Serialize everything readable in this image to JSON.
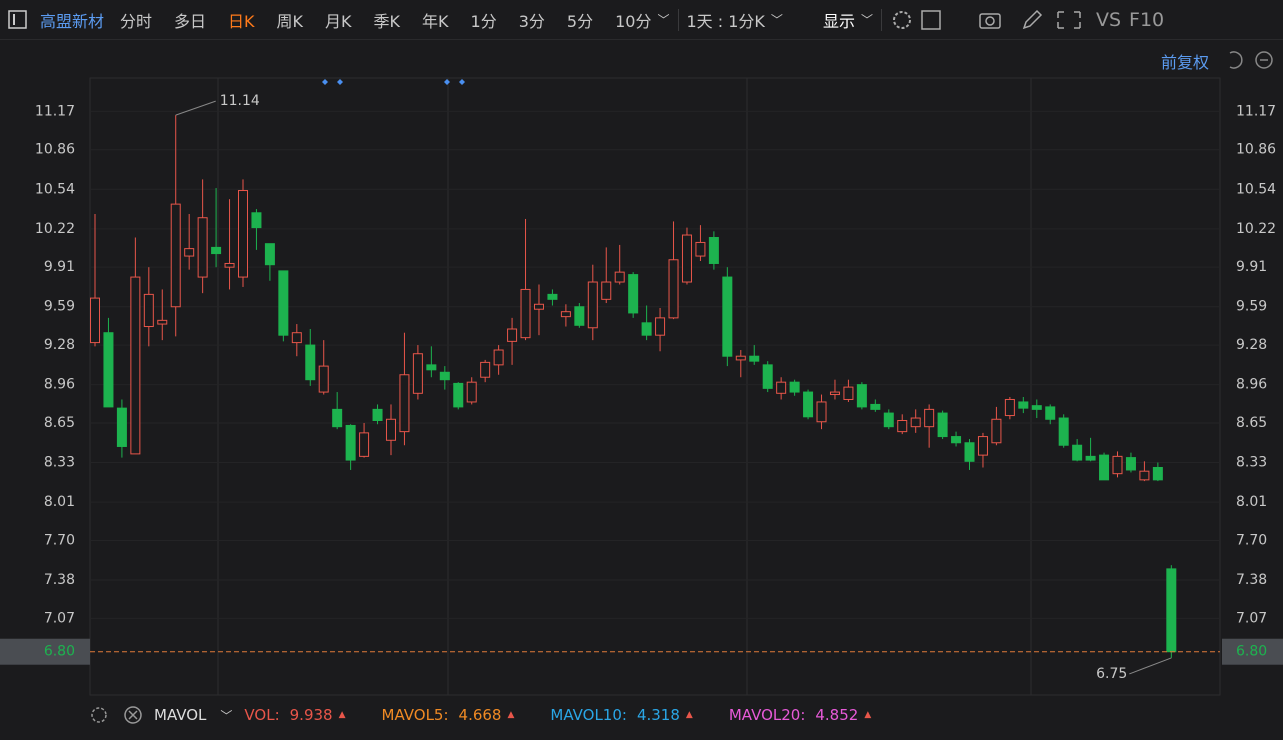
{
  "toolbar": {
    "stock_name": "高盟新材",
    "tabs": [
      {
        "label": "分时",
        "color": "#c8c8c8"
      },
      {
        "label": "多日",
        "color": "#c8c8c8"
      },
      {
        "label": "日K",
        "color": "#ff7a1a"
      },
      {
        "label": "周K",
        "color": "#c8c8c8"
      },
      {
        "label": "月K",
        "color": "#c8c8c8"
      },
      {
        "label": "季K",
        "color": "#c8c8c8"
      },
      {
        "label": "年K",
        "color": "#c8c8c8"
      },
      {
        "label": "1分",
        "color": "#c8c8c8"
      },
      {
        "label": "3分",
        "color": "#c8c8c8"
      },
      {
        "label": "5分",
        "color": "#c8c8c8"
      },
      {
        "label": "10分",
        "color": "#c8c8c8"
      }
    ],
    "period": "1天 : 1分K",
    "display": "显示",
    "vs": "VS",
    "f10": "F10"
  },
  "adjust": "前复权",
  "chart_data": {
    "type": "candlestick",
    "up_color": "#e8564a",
    "down_color": "#1db34f",
    "open": [
      9.3,
      9.38,
      8.77,
      8.4,
      9.43,
      9.45,
      9.59,
      10.0,
      9.83,
      10.07,
      9.91,
      9.83,
      10.35,
      10.1,
      9.88,
      9.3,
      9.28,
      8.9,
      8.76,
      8.63,
      8.38,
      8.76,
      8.51,
      8.58,
      8.89,
      9.12,
      9.06,
      8.97,
      8.82,
      9.02,
      9.12,
      9.31,
      9.34,
      9.57,
      9.69,
      9.51,
      9.59,
      9.42,
      9.65,
      9.79,
      9.85,
      9.46,
      9.36,
      9.5,
      9.79,
      10.0,
      10.15,
      9.83,
      9.16,
      9.19,
      9.12,
      8.89,
      8.98,
      8.9,
      8.66,
      8.88,
      8.84,
      8.96,
      8.8,
      8.73,
      8.58,
      8.62,
      8.62,
      8.73,
      8.54,
      8.49,
      8.39,
      8.49,
      8.71,
      8.82,
      8.79,
      8.78,
      8.69,
      8.47,
      8.38,
      8.39,
      8.24,
      8.37,
      8.19,
      8.29,
      7.47
    ],
    "high": [
      10.34,
      9.5,
      8.84,
      10.15,
      9.91,
      9.73,
      11.14,
      10.34,
      10.62,
      10.55,
      10.46,
      10.62,
      10.38,
      10.1,
      9.88,
      9.45,
      9.41,
      9.32,
      8.9,
      8.64,
      8.65,
      8.8,
      8.8,
      9.38,
      9.28,
      9.27,
      9.11,
      8.98,
      9.02,
      9.16,
      9.28,
      9.5,
      10.3,
      9.77,
      9.73,
      9.61,
      9.62,
      9.93,
      10.07,
      10.09,
      9.87,
      9.6,
      9.58,
      10.28,
      10.23,
      10.25,
      10.2,
      9.91,
      9.24,
      9.28,
      9.15,
      9.02,
      9.0,
      8.92,
      8.88,
      9.0,
      9.0,
      8.98,
      8.84,
      8.76,
      8.72,
      8.76,
      8.8,
      8.75,
      8.58,
      8.52,
      8.57,
      8.78,
      8.86,
      8.86,
      8.84,
      8.8,
      8.72,
      8.52,
      8.53,
      8.41,
      8.42,
      8.41,
      8.34,
      8.33,
      7.5
    ],
    "low": [
      9.27,
      8.78,
      8.37,
      8.4,
      9.27,
      9.32,
      9.35,
      9.89,
      9.7,
      9.91,
      9.73,
      9.75,
      10.05,
      9.8,
      9.31,
      9.19,
      8.95,
      8.88,
      8.6,
      8.27,
      8.37,
      8.64,
      8.39,
      8.47,
      8.84,
      9.02,
      8.92,
      8.76,
      8.8,
      8.98,
      9.04,
      9.12,
      9.32,
      9.36,
      9.6,
      9.43,
      9.42,
      9.32,
      9.62,
      9.77,
      9.5,
      9.32,
      9.23,
      9.49,
      9.77,
      9.96,
      9.89,
      9.11,
      9.02,
      9.12,
      8.9,
      8.84,
      8.87,
      8.68,
      8.6,
      8.84,
      8.82,
      8.76,
      8.74,
      8.6,
      8.56,
      8.57,
      8.45,
      8.52,
      8.46,
      8.27,
      8.29,
      8.47,
      8.68,
      8.73,
      8.69,
      8.64,
      8.45,
      8.34,
      8.34,
      8.19,
      8.21,
      8.25,
      8.18,
      8.18,
      6.75
    ],
    "close": [
      9.66,
      8.78,
      8.46,
      9.83,
      9.69,
      9.48,
      10.42,
      10.06,
      10.31,
      10.02,
      9.94,
      10.53,
      10.23,
      9.93,
      9.36,
      9.38,
      9.0,
      9.11,
      8.62,
      8.35,
      8.57,
      8.67,
      8.68,
      9.04,
      9.21,
      9.08,
      9.0,
      8.78,
      8.98,
      9.14,
      9.24,
      9.41,
      9.73,
      9.61,
      9.65,
      9.55,
      9.44,
      9.79,
      9.79,
      9.87,
      9.54,
      9.36,
      9.5,
      9.97,
      10.17,
      10.11,
      9.94,
      9.19,
      9.19,
      9.15,
      8.93,
      8.98,
      8.9,
      8.7,
      8.82,
      8.9,
      8.94,
      8.78,
      8.76,
      8.62,
      8.67,
      8.69,
      8.76,
      8.54,
      8.49,
      8.34,
      8.54,
      8.68,
      8.84,
      8.77,
      8.76,
      8.68,
      8.47,
      8.35,
      8.35,
      8.19,
      8.38,
      8.27,
      8.26,
      8.19,
      6.8
    ],
    "ylim": [
      6.45,
      11.44
    ],
    "yticks": [
      11.17,
      10.86,
      10.54,
      10.22,
      9.91,
      9.59,
      9.28,
      8.96,
      8.65,
      8.33,
      8.01,
      {
        "value": 7.7,
        "label": "7.70"
      },
      7.38,
      7.07
    ],
    "last_price": {
      "value": 6.8,
      "label": "6.80"
    },
    "last_price_color": "#e07a3a",
    "grid": true
  },
  "indicator": {
    "name": "MAVOL",
    "items": [
      {
        "name": "VOL:",
        "value": 9.938,
        "color": "#e8564a"
      },
      {
        "name": "MAVOL5:",
        "value": 4.668,
        "color": "#f08a24"
      },
      {
        "name": "MAVOL10:",
        "value": 4.318,
        "color": "#2aa6e6"
      },
      {
        "name": "MAVOL20:",
        "value": 4.852,
        "color": "#e75ad8"
      }
    ]
  }
}
